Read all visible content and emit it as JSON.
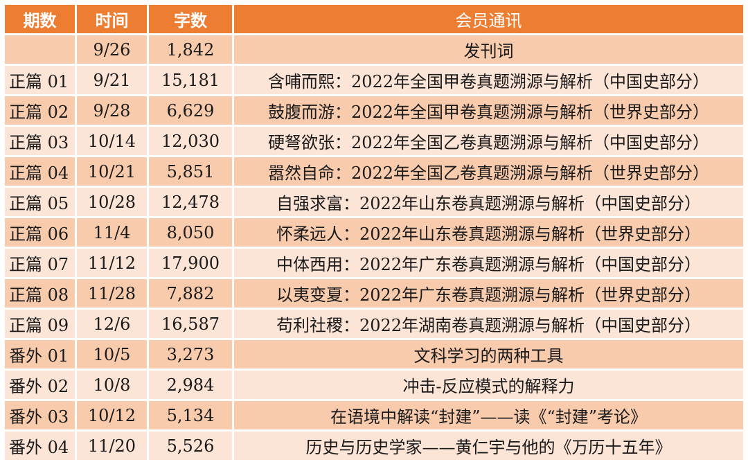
{
  "header": {
    "period": "期数",
    "date": "时间",
    "words": "字数",
    "title": "会员通讯"
  },
  "rows": [
    {
      "period": "",
      "date": "9/26",
      "words": "1,842",
      "title": "发刊词"
    },
    {
      "period": "正篇 01",
      "date": "9/21",
      "words": "15,181",
      "title": "含哺而熙：2022年全国甲卷真题溯源与解析（中国史部分）"
    },
    {
      "period": "正篇 02",
      "date": "9/28",
      "words": "6,629",
      "title": "鼓腹而游：2022年全国甲卷真题溯源与解析（世界史部分）"
    },
    {
      "period": "正篇 03",
      "date": "10/14",
      "words": "12,030",
      "title": "硬弩欲张：2022年全国乙卷真题溯源与解析（中国史部分）"
    },
    {
      "period": "正篇 04",
      "date": "10/21",
      "words": "5,851",
      "title": "嚣然自命：2022年全国乙卷真题溯源与解析（世界史部分）"
    },
    {
      "period": "正篇 05",
      "date": "10/28",
      "words": "12,478",
      "title": "自强求富：2022年山东卷真题溯源与解析（中国史部分）"
    },
    {
      "period": "正篇 06",
      "date": "11/4",
      "words": "8,050",
      "title": "怀柔远人：2022年山东卷真题溯源与解析（世界史部分）"
    },
    {
      "period": "正篇 07",
      "date": "11/12",
      "words": "17,900",
      "title": "中体西用：2022年广东卷真题溯源与解析（中国史部分）"
    },
    {
      "period": "正篇 08",
      "date": "11/28",
      "words": "7,882",
      "title": "以夷变夏：2022年广东卷真题溯源与解析（世界史部分）"
    },
    {
      "period": "正篇 09",
      "date": "12/6",
      "words": "16,587",
      "title": "苟利社稷：2022年湖南卷真题溯源与解析（中国史部分）"
    },
    {
      "period": "番外 01",
      "date": "10/5",
      "words": "3,273",
      "title": "文科学习的两种工具"
    },
    {
      "period": "番外 02",
      "date": "10/8",
      "words": "2,984",
      "title": "冲击-反应模式的解释力"
    },
    {
      "period": "番外 03",
      "date": "10/12",
      "words": "5,134",
      "title": "在语境中解读“封建”——读《“封建”考论》"
    },
    {
      "period": "番外 04",
      "date": "11/20",
      "words": "5,526",
      "title": "历史与历史学家——黄仁宇与他的《万历十五年》"
    }
  ],
  "colors": {
    "header_bg": "#ed7d31",
    "row_dark": "#f8cbad",
    "row_light": "#fce4d6"
  }
}
